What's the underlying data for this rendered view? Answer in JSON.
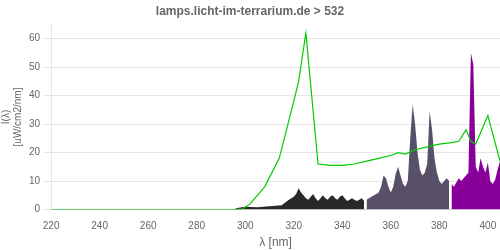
{
  "chart_data": {
    "type": "line",
    "title": "lamps.licht-im-terrarium.de > 532",
    "xlabel": "λ [nm]",
    "ylabel": "I(λ)\n[uW/cm2/nm]",
    "xlim": [
      220,
      405
    ],
    "ylim": [
      0,
      65
    ],
    "xticks": [
      220,
      240,
      260,
      280,
      300,
      320,
      340,
      360,
      380,
      400
    ],
    "yticks": [
      0,
      10,
      20,
      30,
      40,
      50,
      60
    ],
    "grid": "y",
    "series": [
      {
        "type": "area",
        "color": "#282828",
        "x": [
          296,
          300,
          305,
          310,
          315,
          318,
          320,
          321,
          322,
          323,
          324,
          325,
          326,
          327,
          328,
          329,
          330,
          331,
          332,
          333,
          334,
          335,
          336,
          337,
          338,
          339,
          340,
          341,
          342,
          343,
          344,
          345,
          346,
          347,
          348,
          349
        ],
        "values": [
          0.5,
          1.0,
          0.8,
          1.2,
          1.5,
          3.5,
          4.5,
          5.5,
          7.5,
          6.0,
          5.0,
          4.0,
          3.5,
          4.5,
          5.5,
          4.0,
          3.0,
          4.0,
          5.0,
          4.0,
          3.5,
          4.5,
          5.0,
          4.0,
          3.5,
          4.5,
          5.0,
          4.0,
          3.0,
          3.5,
          4.0,
          3.5,
          3.0,
          3.5,
          4.0,
          3.0
        ]
      },
      {
        "type": "area",
        "color": "#585068",
        "x": [
          350,
          352,
          354,
          355,
          356,
          357,
          358,
          359,
          360,
          361,
          362,
          363,
          364,
          365,
          366,
          367,
          368,
          369,
          370,
          371,
          372,
          373,
          374,
          375,
          376,
          377,
          378,
          379,
          380,
          381,
          382,
          383,
          384
        ],
        "values": [
          3.5,
          4.5,
          5.5,
          6.0,
          8.0,
          12.0,
          11.0,
          8.0,
          6.0,
          8.0,
          12.5,
          15.0,
          12.0,
          9.0,
          8.0,
          10.0,
          25.0,
          37.0,
          30.0,
          20.0,
          14.0,
          12.0,
          13.0,
          16.0,
          34.5,
          28.0,
          18.0,
          13.0,
          10.0,
          9.0,
          10.0,
          11.0,
          10.0
        ]
      },
      {
        "type": "area",
        "color": "#880099",
        "x": [
          385,
          386,
          387,
          388,
          389,
          390,
          391,
          392,
          393,
          394,
          395,
          396,
          397,
          398,
          399,
          400,
          401,
          402,
          403,
          404,
          405
        ],
        "values": [
          9.0,
          8.0,
          9.5,
          11.0,
          10.0,
          11.0,
          12.0,
          13.0,
          55.0,
          51.0,
          15.0,
          13.0,
          18.0,
          15.0,
          13.0,
          16.5,
          10.0,
          9.0,
          10.5,
          14.0,
          17.0
        ]
      },
      {
        "type": "line",
        "color": "#00cc00",
        "x": [
          220,
          295,
          299,
          302,
          308,
          314,
          320,
          322,
          325,
          330,
          335,
          340,
          345,
          350,
          355,
          360,
          363,
          366,
          370,
          375,
          380,
          385,
          388,
          391,
          393,
          395,
          400,
          405
        ],
        "values": [
          0,
          0,
          0.3,
          2,
          8,
          18,
          38,
          45,
          62,
          16,
          15.5,
          15.5,
          16,
          17,
          18,
          19,
          20,
          19.5,
          21,
          22,
          23,
          23.5,
          24,
          28,
          24,
          23,
          33,
          17
        ]
      }
    ]
  }
}
